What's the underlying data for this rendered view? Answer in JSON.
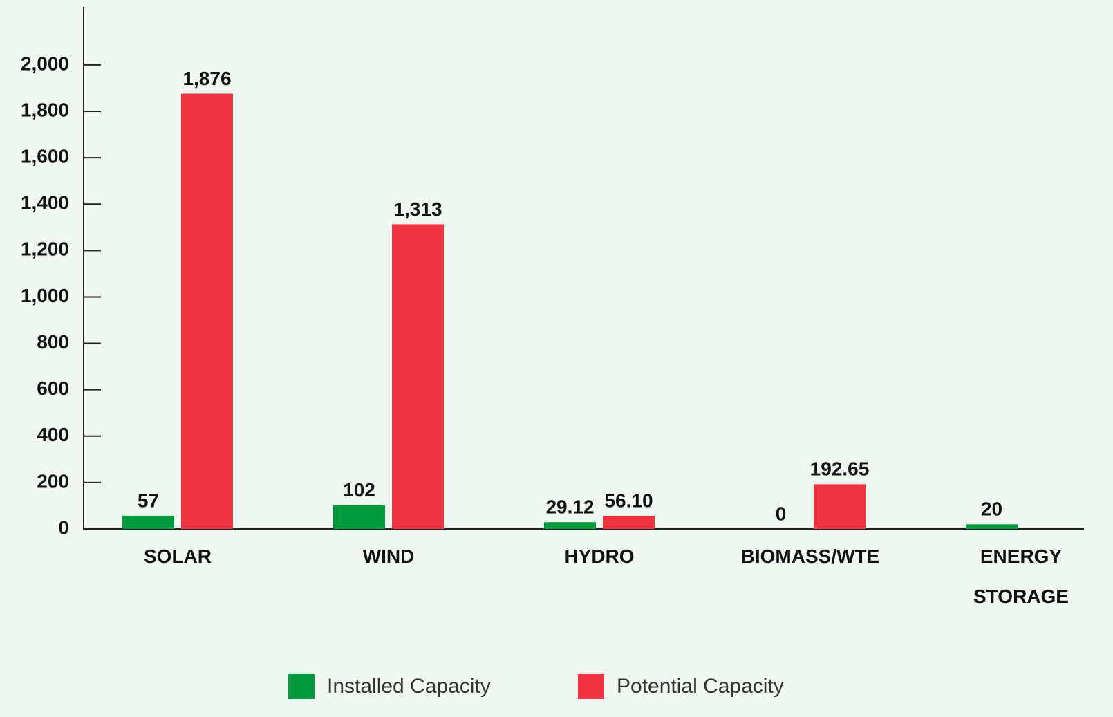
{
  "chart_data": {
    "type": "bar",
    "categories": [
      "SOLAR",
      "WIND",
      "HYDRO",
      "BIOMASS/WTE",
      "ENERGY STORAGE"
    ],
    "series": [
      {
        "name": "Installed Capacity",
        "color": "#009a3e",
        "values": [
          57,
          102,
          29.12,
          0,
          20
        ],
        "value_labels": [
          "57",
          "102",
          "29.12",
          "0",
          "20"
        ]
      },
      {
        "name": "Potential Capacity",
        "color": "#ef3340",
        "values": [
          1876,
          1313,
          56.1,
          192.65,
          null
        ],
        "value_labels": [
          "1,876",
          "1,313",
          "56.10",
          "192.65",
          null
        ]
      }
    ],
    "ylim": [
      0,
      2250
    ],
    "yticks": [
      0,
      200,
      400,
      600,
      800,
      {
        "value": 1000,
        "label": "1,000"
      },
      {
        "value": 1200,
        "label": "1,200"
      },
      {
        "value": 1400,
        "label": "1,400"
      },
      {
        "value": 1600,
        "label": "1,600"
      },
      {
        "value": 1800,
        "label": "1,800"
      },
      {
        "value": 2000,
        "label": "2,000"
      }
    ],
    "legend": "bottom"
  }
}
